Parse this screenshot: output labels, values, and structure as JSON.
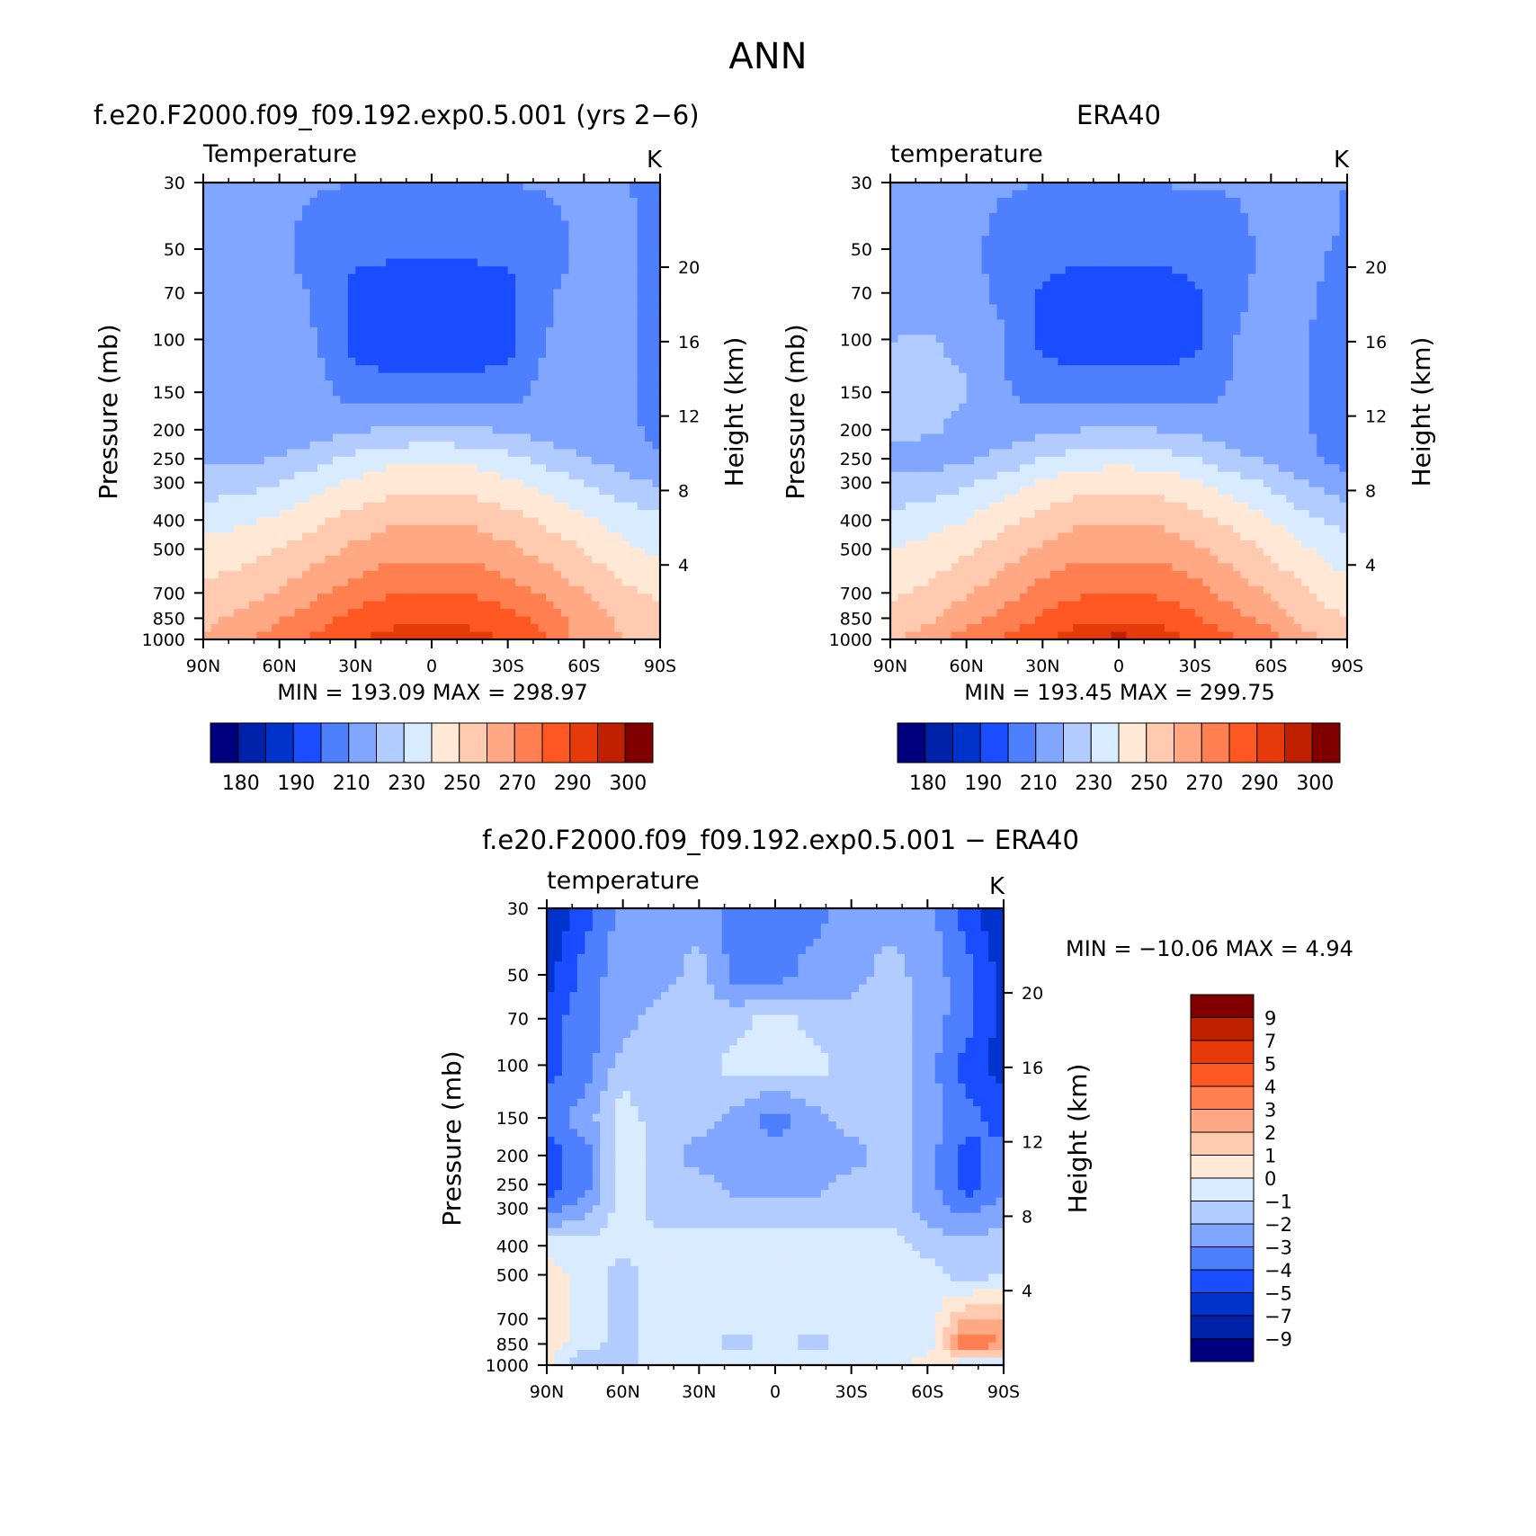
{
  "figure": {
    "title": "ANN"
  },
  "panels": [
    {
      "id": "model",
      "header": "f.e20.F2000.f09_f09.192.exp0.5.001 (yrs 2−6)",
      "var_label": "Temperature",
      "units": "K",
      "stats": "MIN = 193.09 MAX = 298.97"
    },
    {
      "id": "obs",
      "header": "ERA40",
      "var_label": "temperature",
      "units": "K",
      "stats": "MIN = 193.45 MAX = 299.75"
    },
    {
      "id": "diff",
      "header": "f.e20.F2000.f09_f09.192.exp0.5.001 − ERA40",
      "var_label": "temperature",
      "units": "K",
      "stats": "MIN = −10.06 MAX = 4.94"
    }
  ],
  "axes": {
    "ylabel_left": "Pressure (mb)",
    "ylabel_right": "Height (km)",
    "pressure_ticks": [
      30,
      50,
      70,
      100,
      150,
      200,
      250,
      300,
      400,
      500,
      700,
      850,
      1000
    ],
    "height_ticks": [
      20,
      16,
      12,
      8,
      4
    ],
    "lat_ticks": [
      "90N",
      "60N",
      "30N",
      "0",
      "30S",
      "60S",
      "90S"
    ]
  },
  "colors": {
    "temperature_levels": [
      "#00007f",
      "#0022aa",
      "#0033cc",
      "#1a4dff",
      "#4d7fff",
      "#80a6ff",
      "#b3ccff",
      "#d9ebff",
      "#ffe9d6",
      "#ffcab0",
      "#ffa883",
      "#ff7f50",
      "#ff5722",
      "#e63a0a",
      "#bf2000",
      "#800000"
    ],
    "difference_levels": [
      "#00007f",
      "#0022aa",
      "#0033cc",
      "#1a4dff",
      "#4d7fff",
      "#80a6ff",
      "#b3ccff",
      "#d9ebff",
      "#ffe9d6",
      "#ffcab0",
      "#ffa883",
      "#ff7f50",
      "#ff5722",
      "#e63a0a",
      "#bf2000",
      "#800000"
    ]
  },
  "chart_data": [
    {
      "type": "heatmap",
      "title": "f.e20.F2000.f09_f09.192.exp0.5.001 (yrs 2−6)",
      "subtitle": "Temperature",
      "xlabel": "",
      "ylabel": "Pressure (mb)",
      "x": [
        90,
        75,
        60,
        45,
        30,
        15,
        0,
        -15,
        -30,
        -45,
        -60,
        -75,
        -90
      ],
      "y": [
        1000,
        850,
        700,
        500,
        400,
        300,
        250,
        200,
        150,
        100,
        70,
        50,
        30
      ],
      "y_scale": "log",
      "z": [
        [
          260,
          268,
          275,
          282,
          289,
          294,
          296,
          294,
          289,
          282,
          265,
          260,
          255
        ],
        [
          258,
          262,
          269,
          276,
          283,
          287,
          288,
          287,
          283,
          276,
          266,
          258,
          254
        ],
        [
          253,
          256,
          261,
          268,
          275,
          279,
          280,
          279,
          275,
          268,
          260,
          252,
          248
        ],
        [
          243,
          246,
          250,
          256,
          262,
          266,
          267,
          266,
          262,
          256,
          250,
          242,
          238
        ],
        [
          236,
          238,
          242,
          248,
          254,
          258,
          259,
          258,
          254,
          248,
          242,
          236,
          232
        ],
        [
          224,
          226,
          230,
          236,
          242,
          246,
          247,
          246,
          242,
          236,
          230,
          224,
          218
        ],
        [
          218,
          218,
          220,
          226,
          233,
          237,
          238,
          237,
          233,
          226,
          220,
          215,
          210
        ],
        [
          214,
          213,
          213,
          215,
          219,
          221,
          222,
          221,
          219,
          215,
          213,
          212,
          208
        ],
        [
          214,
          213,
          216,
          214,
          205,
          203,
          203,
          203,
          205,
          214,
          213,
          212,
          207
        ],
        [
          215,
          214,
          213,
          210,
          196,
          194,
          194,
          194,
          196,
          210,
          213,
          212,
          207
        ],
        [
          215,
          214,
          213,
          209,
          197,
          195,
          195,
          195,
          197,
          209,
          213,
          212,
          207
        ],
        [
          215,
          214,
          213,
          205,
          202,
          202,
          202,
          202,
          202,
          205,
          213,
          212,
          207
        ],
        [
          213,
          213,
          212,
          211,
          210,
          210,
          210,
          210,
          210,
          211,
          212,
          211,
          207
        ]
      ],
      "levels": [
        180,
        185,
        190,
        200,
        210,
        220,
        230,
        240,
        250,
        260,
        270,
        280,
        290,
        295,
        300
      ],
      "colorbar_labels": [
        180,
        190,
        210,
        230,
        250,
        270,
        290,
        300
      ],
      "min": 193.09,
      "max": 298.97
    },
    {
      "type": "heatmap",
      "title": "ERA40",
      "subtitle": "temperature",
      "xlabel": "",
      "ylabel": "Pressure (mb)",
      "x": [
        90,
        75,
        60,
        45,
        30,
        15,
        0,
        -15,
        -30,
        -45,
        -60,
        -75,
        -90
      ],
      "y": [
        1000,
        850,
        700,
        500,
        400,
        300,
        250,
        200,
        150,
        100,
        70,
        50,
        30
      ],
      "y_scale": "log",
      "z": [
        [
          258,
          266,
          274,
          282,
          289,
          295,
          297,
          295,
          289,
          282,
          274,
          262,
          258
        ],
        [
          252,
          258,
          266,
          274,
          281,
          287,
          288,
          287,
          281,
          274,
          266,
          254,
          250
        ],
        [
          248,
          252,
          259,
          266,
          274,
          279,
          280,
          279,
          274,
          266,
          259,
          250,
          244
        ],
        [
          240,
          243,
          248,
          255,
          262,
          266,
          267,
          266,
          262,
          255,
          248,
          240,
          234
        ],
        [
          233,
          236,
          240,
          247,
          253,
          258,
          259,
          258,
          253,
          247,
          240,
          232,
          226
        ],
        [
          222,
          224,
          228,
          235,
          241,
          246,
          247,
          246,
          241,
          235,
          228,
          220,
          214
        ],
        [
          218,
          216,
          218,
          223,
          230,
          235,
          236,
          235,
          230,
          223,
          218,
          212,
          206
        ],
        [
          222,
          221,
          218,
          214,
          217,
          220,
          221,
          220,
          217,
          214,
          213,
          210,
          205
        ],
        [
          222,
          221,
          221,
          211,
          206,
          204,
          204,
          204,
          206,
          211,
          213,
          210,
          204
        ],
        [
          220,
          221,
          218,
          210,
          197,
          195,
          195,
          195,
          197,
          210,
          213,
          210,
          206
        ],
        [
          214,
          214,
          213,
          208,
          199,
          196,
          196,
          196,
          199,
          208,
          213,
          211,
          207
        ],
        [
          214,
          214,
          213,
          206,
          203,
          202,
          202,
          202,
          203,
          206,
          213,
          212,
          208
        ],
        [
          213,
          213,
          212,
          211,
          210,
          210,
          210,
          210,
          211,
          211,
          213,
          221,
          209
        ]
      ],
      "levels": [
        180,
        185,
        190,
        200,
        210,
        220,
        230,
        240,
        250,
        260,
        270,
        280,
        290,
        295,
        300
      ],
      "colorbar_labels": [
        180,
        190,
        210,
        230,
        250,
        270,
        290,
        300
      ],
      "min": 193.45,
      "max": 299.75
    },
    {
      "type": "heatmap",
      "title": "f.e20.F2000.f09_f09.192.exp0.5.001 − ERA40",
      "subtitle": "temperature",
      "xlabel": "",
      "ylabel": "Pressure (mb)",
      "x": [
        90,
        75,
        60,
        45,
        30,
        15,
        0,
        -15,
        -30,
        -45,
        -60,
        -75,
        -90
      ],
      "y": [
        1000,
        850,
        700,
        500,
        400,
        300,
        250,
        200,
        150,
        100,
        70,
        50,
        30
      ],
      "y_scale": "log",
      "z": [
        [
          0.5,
          -2,
          -1.5,
          -0.5,
          -0.5,
          -0.5,
          -0.5,
          -0.5,
          -0.5,
          -0.5,
          0.5,
          -1,
          -1
        ],
        [
          0.5,
          -0.5,
          -1.5,
          -0.5,
          -0.5,
          -1.5,
          -0.5,
          -1.5,
          -0.5,
          -0.5,
          -0.5,
          4,
          3
        ],
        [
          0.5,
          -0.5,
          -1.5,
          -0.5,
          -0.5,
          -0.5,
          -0.5,
          -0.5,
          -0.5,
          -0.5,
          -0.5,
          2,
          2
        ],
        [
          0.5,
          -0.5,
          -1.5,
          -0.5,
          -0.5,
          -0.5,
          -0.5,
          -0.5,
          -0.5,
          -0.5,
          -0.5,
          -1.5,
          -1
        ],
        [
          -0.5,
          -0.5,
          -0.5,
          -0.5,
          -0.5,
          -0.5,
          -0.5,
          -0.5,
          -0.5,
          -0.5,
          -1.5,
          -1.5,
          -1.5
        ],
        [
          -3.5,
          -2.5,
          -0.5,
          -1.5,
          -1.5,
          -1.5,
          -1.5,
          -1.5,
          -1.5,
          -1.5,
          -2.5,
          -3.5,
          -2.5
        ],
        [
          -4.5,
          -3.5,
          -0.5,
          -1.5,
          -1.5,
          -2.5,
          -2.5,
          -2.5,
          -1.5,
          -1.5,
          -2.5,
          -4.5,
          -3.5
        ],
        [
          -4.5,
          -3.5,
          -0.5,
          -1.5,
          -2.5,
          -2.5,
          -2.5,
          -2.5,
          -2.5,
          -1.5,
          -2.5,
          -4.5,
          -3.5
        ],
        [
          -3.5,
          -2.5,
          -0.5,
          -1.5,
          -1.5,
          -2.5,
          -3.5,
          -2.5,
          -1.5,
          -1.5,
          -2.5,
          -3.5,
          -4.5
        ],
        [
          -4.5,
          -3.5,
          -1.5,
          -1.5,
          -1.5,
          -0.5,
          -0.5,
          -0.5,
          -1.5,
          -1.5,
          -2.5,
          -4.5,
          -5.5
        ],
        [
          -4.5,
          -3.5,
          -2.5,
          -1.5,
          -1.5,
          -1.5,
          -0.5,
          -1.5,
          -1.5,
          -1.5,
          -2.5,
          -3.5,
          -5.5
        ],
        [
          -5.5,
          -3.5,
          -2.5,
          -2.5,
          -1.5,
          -3.5,
          -3.5,
          -2.5,
          -2.5,
          -1.5,
          -2.5,
          -3.5,
          -5.5
        ],
        [
          -6,
          -4.5,
          -2.5,
          -2.5,
          -2.5,
          -3.5,
          -3.5,
          -3.5,
          -2.5,
          -2.5,
          -2.5,
          -4.5,
          -6
        ]
      ],
      "levels": [
        -9,
        -7,
        -5,
        -4,
        -3,
        -2,
        -1,
        0,
        1,
        2,
        3,
        4,
        5,
        7,
        9
      ],
      "colorbar_labels": [
        9,
        7,
        5,
        4,
        3,
        2,
        1,
        0,
        -1,
        -2,
        -3,
        -4,
        -5,
        -7,
        -9
      ],
      "min": -10.06,
      "max": 4.94
    }
  ]
}
